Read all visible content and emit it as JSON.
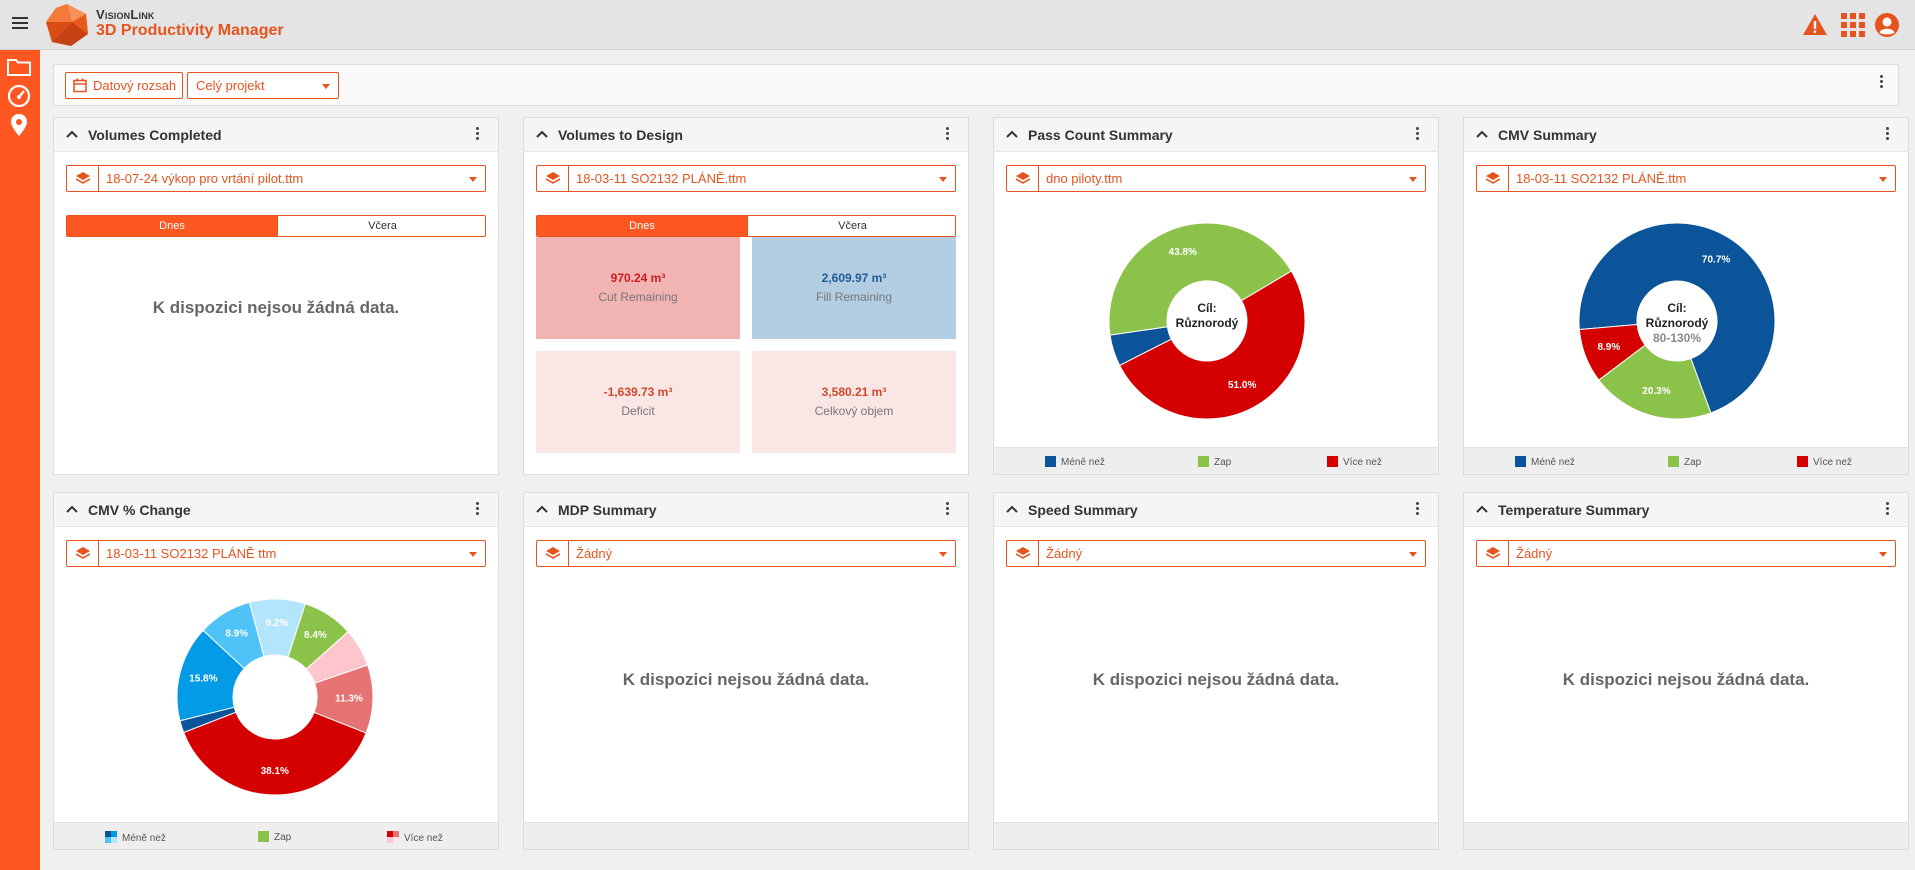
{
  "header": {
    "brand_top": "VisionLink",
    "brand_main": "3D Productivity Manager"
  },
  "toolbar": {
    "date_range_label": "Datový rozsah",
    "project_select": "Celý projekt"
  },
  "cards": {
    "volumes_completed": {
      "title": "Volumes Completed",
      "surface": "18-07-24 výkop pro vrtání pilot.ttm",
      "toggle": [
        "Dnes",
        "Včera"
      ],
      "no_data": "K dispozici nejsou žádná data."
    },
    "volumes_to_design": {
      "title": "Volumes to Design",
      "surface": "18-03-11 SO2132 PLÁNĚ.ttm",
      "toggle": [
        "Dnes",
        "Včera"
      ],
      "tiles": [
        {
          "value": "970.24 m³",
          "label": "Cut Remaining",
          "bg": "#f2b3b3",
          "color": "#cc1c1c"
        },
        {
          "value": "2,609.97 m³",
          "label": "Fill Remaining",
          "bg": "#b3cde2",
          "color": "#1f5b95"
        },
        {
          "value": "-1,639.73 m³",
          "label": "Deficit",
          "bg": "#fbe6e6",
          "color": "#d0482a"
        },
        {
          "value": "3,580.21 m³",
          "label": "Celkový objem",
          "bg": "#fbe6e6",
          "color": "#d0482a"
        }
      ]
    },
    "pass_count": {
      "title": "Pass Count Summary",
      "surface": "dno piloty.ttm",
      "center_line1": "Cíl:",
      "center_line2": "Různorodý",
      "legend": [
        "Méně než",
        "Zap",
        "Více než"
      ]
    },
    "cmv_summary": {
      "title": "CMV Summary",
      "surface": "18-03-11 SO2132 PLÁNĚ.ttm",
      "center_line1": "Cíl:",
      "center_line2": "Různorodý",
      "center_line3": "80-130%",
      "legend": [
        "Méně než",
        "Zap",
        "Více než"
      ]
    },
    "cmv_change": {
      "title": "CMV % Change",
      "surface": "18-03-11 SO2132 PLÁNĚ ttm",
      "legend": [
        "Méně než",
        "Zap",
        "Více než"
      ]
    },
    "mdp_summary": {
      "title": "MDP Summary",
      "surface": "Žádný",
      "no_data": "K dispozici nejsou žádná data."
    },
    "speed_summary": {
      "title": "Speed Summary",
      "surface": "Žádný",
      "no_data": "K dispozici nejsou žádná data."
    },
    "temperature_summary": {
      "title": "Temperature Summary",
      "surface": "Žádný",
      "no_data": "K dispozici nejsou žádná data."
    }
  },
  "chart_data": [
    {
      "type": "pie",
      "chart": "pass_count",
      "slices": [
        {
          "label": "Méně než",
          "value": 5.2,
          "text": "",
          "color": "#0b5499"
        },
        {
          "label": "Zap",
          "value": 43.8,
          "text": "43.8%",
          "color": "#8bc34a"
        },
        {
          "label": "Více než",
          "value": 51.0,
          "text": "51.0%",
          "color": "#d50000"
        }
      ]
    },
    {
      "type": "pie",
      "chart": "cmv_summary",
      "slices": [
        {
          "label": "Méně než",
          "value": 70.7,
          "text": "70.7%",
          "color": "#0b5499"
        },
        {
          "label": "Zap",
          "value": 20.3,
          "text": "20.3%",
          "color": "#8bc34a"
        },
        {
          "label": "Více než",
          "value": 8.9,
          "text": "8.9%",
          "color": "#d50000"
        }
      ]
    },
    {
      "type": "pie",
      "chart": "cmv_change",
      "slices": [
        {
          "value": 8.4,
          "text": "8.4%",
          "color": "#8bc34a"
        },
        {
          "value": 6.3,
          "text": "",
          "color": "#ffc5cc"
        },
        {
          "value": 11.3,
          "text": "11.3%",
          "color": "#e57373"
        },
        {
          "value": 38.1,
          "text": "38.1%",
          "color": "#d50000"
        },
        {
          "value": 2.0,
          "text": "",
          "color": "#0b5499"
        },
        {
          "value": 15.8,
          "text": "15.8%",
          "color": "#039be5"
        },
        {
          "value": 8.9,
          "text": "8.9%",
          "color": "#4fc3f7"
        },
        {
          "value": 9.2,
          "text": "9.2%",
          "color": "#b3e5fc"
        }
      ]
    }
  ]
}
